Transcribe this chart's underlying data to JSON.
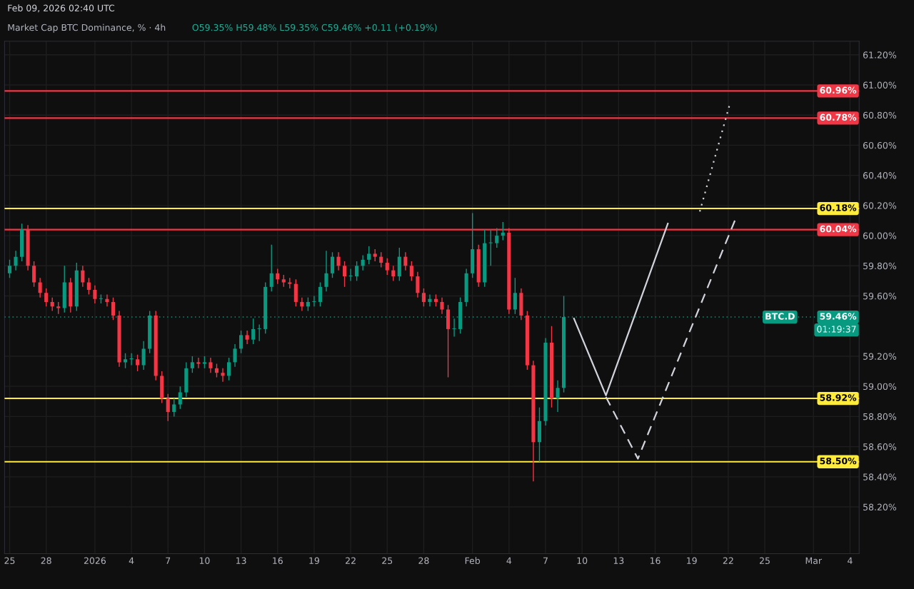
{
  "chart_data": {
    "type": "candlestick",
    "title": "Market Cap BTC Dominance, % · 4h",
    "subtitle": "O59.35% H59.48% L59.35% C59.46% +0.11 (+0.19%)",
    "annotations": [
      "Feb 09, 2026 02:40 UTC",
      "BTC.D",
      "01:19:37"
    ],
    "xlim": [
      "2025-12-24T14:00",
      "2026-03-04T18:00"
    ],
    "ylim": [
      57.89,
      61.29
    ],
    "xticks": [
      {
        "value": "2025-12-25",
        "label": "25"
      },
      {
        "value": "2025-12-28",
        "label": "28"
      },
      {
        "value": "2026-01-01",
        "label": "2026"
      },
      {
        "value": "2026-01-04",
        "label": "4"
      },
      {
        "value": "2026-01-07",
        "label": "7"
      },
      {
        "value": "2026-01-10",
        "label": "10"
      },
      {
        "value": "2026-01-13",
        "label": "13"
      },
      {
        "value": "2026-01-16",
        "label": "16"
      },
      {
        "value": "2026-01-19",
        "label": "19"
      },
      {
        "value": "2026-01-22",
        "label": "22"
      },
      {
        "value": "2026-01-25",
        "label": "25"
      },
      {
        "value": "2026-01-28",
        "label": "28"
      },
      {
        "value": "2026-02-01",
        "label": "Feb"
      },
      {
        "value": "2026-02-04",
        "label": "4"
      },
      {
        "value": "2026-02-07",
        "label": "7"
      },
      {
        "value": "2026-02-10",
        "label": "10"
      },
      {
        "value": "2026-02-13",
        "label": "13"
      },
      {
        "value": "2026-02-16",
        "label": "16"
      },
      {
        "value": "2026-02-19",
        "label": "19"
      },
      {
        "value": "2026-02-22",
        "label": "22"
      },
      {
        "value": "2026-02-25",
        "label": "25"
      },
      {
        "value": "2026-03-01",
        "label": "Mar"
      },
      {
        "value": "2026-03-04",
        "label": "4"
      }
    ],
    "yticks": [
      {
        "value": 58.2,
        "label": "58.20%"
      },
      {
        "value": 58.4,
        "label": "58.40%"
      },
      {
        "value": 58.6,
        "label": "58.60%"
      },
      {
        "value": 58.8,
        "label": "58.80%"
      },
      {
        "value": 59.0,
        "label": "59.00%"
      },
      {
        "value": 59.2,
        "label": "59.20%"
      },
      {
        "value": 59.6,
        "label": "59.60%"
      },
      {
        "value": 59.8,
        "label": "59.80%"
      },
      {
        "value": 60.0,
        "label": "60.00%"
      },
      {
        "value": 60.2,
        "label": "60.20%"
      },
      {
        "value": 60.4,
        "label": "60.40%"
      },
      {
        "value": 60.6,
        "label": "60.60%"
      },
      {
        "value": 60.8,
        "label": "60.80%"
      },
      {
        "value": 61.0,
        "label": "61.00%"
      },
      {
        "value": 61.2,
        "label": "61.20%"
      }
    ],
    "grid": true,
    "ref_lines": [
      {
        "axis": "y",
        "value": 60.96,
        "label": "60.96%",
        "color": "#f23645",
        "line_style": "solid"
      },
      {
        "axis": "y",
        "value": 60.78,
        "label": "60.78%",
        "color": "#f23645",
        "line_style": "solid"
      },
      {
        "axis": "y",
        "value": 60.18,
        "label": "60.18%",
        "color": "#ffeb3b",
        "line_style": "solid"
      },
      {
        "axis": "y",
        "value": 60.04,
        "label": "60.04%",
        "color": "#f23645",
        "line_style": "solid"
      },
      {
        "axis": "y",
        "value": 58.92,
        "label": "58.92%",
        "color": "#ffeb3b",
        "line_style": "solid"
      },
      {
        "axis": "y",
        "value": 58.5,
        "label": "58.50%",
        "color": "#ffeb3b",
        "line_style": "solid"
      },
      {
        "axis": "y",
        "value": 59.46,
        "label": "59.46%",
        "color": "#089981",
        "line_style": "dotted"
      }
    ],
    "series": [
      {
        "colors": [
          "#089981",
          "#089981",
          "#089981",
          "#f23645",
          "#f23645",
          "#f23645",
          "#f23645",
          "#f23645",
          "#f23645",
          "#089981",
          "#f23645",
          "#089981",
          "#f23645",
          "#f23645",
          "#f23645",
          "#089981",
          "#f23645",
          "#f23645",
          "#f23645",
          "#089981",
          "#089981",
          "#f23645",
          "#089981",
          "#089981",
          "#f23645",
          "#f23645",
          "#f23645",
          "#089981",
          "#089981",
          "#089981",
          "#089981",
          "#f23645",
          "#089981",
          "#f23645",
          "#f23645",
          "#f23645",
          "#089981",
          "#089981",
          "#089981",
          "#f23645",
          "#089981",
          "#089981",
          "#089981",
          "#089981",
          "#f23645",
          "#f23645",
          "#f23645",
          "#f23645",
          "#f23645",
          "#089981",
          "#089981",
          "#089981",
          "#089981",
          "#089981",
          "#f23645",
          "#f23645",
          "#089981",
          "#089981",
          "#089981",
          "#089981",
          "#f23645",
          "#f23645",
          "#f23645",
          "#f23645",
          "#089981",
          "#f23645",
          "#f23645",
          "#f23645",
          "#f23645",
          "#089981",
          "#f23645",
          "#f23645",
          "#f23645",
          "#089981",
          "#089981",
          "#089981",
          "#089981",
          "#f23645",
          "#089981",
          "#089981",
          "#089981",
          "#089981",
          "#f23645",
          "#089981",
          "#f23645",
          "#f23645",
          "#f23645",
          "#089981",
          "#089981",
          "#f23645",
          "#089981",
          "#089981"
        ],
        "x": [
          "2025-12-25T00:00",
          "2025-12-25T12:00",
          "2025-12-26T00:00",
          "2025-12-26T12:00",
          "2025-12-27T00:00",
          "2025-12-27T12:00",
          "2025-12-28T00:00",
          "2025-12-28T12:00",
          "2025-12-29T00:00",
          "2025-12-29T12:00",
          "2025-12-30T00:00",
          "2025-12-30T12:00",
          "2025-12-31T00:00",
          "2025-12-31T12:00",
          "2026-01-01T00:00",
          "2026-01-01T12:00",
          "2026-01-02T00:00",
          "2026-01-02T12:00",
          "2026-01-03T00:00",
          "2026-01-03T12:00",
          "2026-01-04T00:00",
          "2026-01-04T12:00",
          "2026-01-05T00:00",
          "2026-01-05T12:00",
          "2026-01-06T00:00",
          "2026-01-06T12:00",
          "2026-01-07T00:00",
          "2026-01-07T12:00",
          "2026-01-08T00:00",
          "2026-01-08T12:00",
          "2026-01-09T00:00",
          "2026-01-09T12:00",
          "2026-01-10T00:00",
          "2026-01-10T12:00",
          "2026-01-11T00:00",
          "2026-01-11T12:00",
          "2026-01-12T00:00",
          "2026-01-12T12:00",
          "2026-01-13T00:00",
          "2026-01-13T12:00",
          "2026-01-14T00:00",
          "2026-01-14T12:00",
          "2026-01-15T00:00",
          "2026-01-15T12:00",
          "2026-01-16T00:00",
          "2026-01-16T12:00",
          "2026-01-17T00:00",
          "2026-01-17T12:00",
          "2026-01-18T00:00",
          "2026-01-18T12:00",
          "2026-01-19T00:00",
          "2026-01-19T12:00",
          "2026-01-20T00:00",
          "2026-01-20T12:00",
          "2026-01-21T00:00",
          "2026-01-21T12:00",
          "2026-01-22T00:00",
          "2026-01-22T12:00",
          "2026-01-23T00:00",
          "2026-01-23T12:00",
          "2026-01-24T00:00",
          "2026-01-24T12:00",
          "2026-01-25T00:00",
          "2026-01-25T12:00",
          "2026-01-26T00:00",
          "2026-01-26T12:00",
          "2026-01-27T00:00",
          "2026-01-27T12:00",
          "2026-01-28T00:00",
          "2026-01-28T12:00",
          "2026-01-29T00:00",
          "2026-01-29T12:00",
          "2026-01-30T00:00",
          "2026-01-30T12:00",
          "2026-01-31T00:00",
          "2026-01-31T12:00",
          "2026-02-01T00:00",
          "2026-02-01T12:00",
          "2026-02-02T00:00",
          "2026-02-02T12:00",
          "2026-02-03T00:00",
          "2026-02-03T12:00",
          "2026-02-04T00:00",
          "2026-02-04T12:00",
          "2026-02-05T00:00",
          "2026-02-05T12:00",
          "2026-02-06T00:00",
          "2026-02-06T12:00",
          "2026-02-07T00:00",
          "2026-02-07T12:00",
          "2026-02-08T00:00",
          "2026-02-08T12:00"
        ],
        "ohlc": [
          [
            59.75,
            59.84,
            59.72,
            59.8
          ],
          [
            59.8,
            59.9,
            59.77,
            59.86
          ],
          [
            59.86,
            60.08,
            59.83,
            60.04
          ],
          [
            60.04,
            60.07,
            59.77,
            59.8
          ],
          [
            59.8,
            59.83,
            59.66,
            59.69
          ],
          [
            59.69,
            59.72,
            59.59,
            59.62
          ],
          [
            59.62,
            59.65,
            59.53,
            59.56
          ],
          [
            59.56,
            59.59,
            59.5,
            59.53
          ],
          [
            59.53,
            59.56,
            59.48,
            59.52
          ],
          [
            59.52,
            59.8,
            59.49,
            59.69
          ],
          [
            59.69,
            59.72,
            59.49,
            59.53
          ],
          [
            59.53,
            59.82,
            59.5,
            59.77
          ],
          [
            59.77,
            59.8,
            59.66,
            59.69
          ],
          [
            59.69,
            59.72,
            59.61,
            59.64
          ],
          [
            59.64,
            59.67,
            59.55,
            59.58
          ],
          [
            59.58,
            59.61,
            59.55,
            59.58
          ],
          [
            59.58,
            59.61,
            59.53,
            59.56
          ],
          [
            59.56,
            59.59,
            59.44,
            59.47
          ],
          [
            59.47,
            59.5,
            59.13,
            59.16
          ],
          [
            59.16,
            59.22,
            59.12,
            59.18
          ],
          [
            59.18,
            59.22,
            59.14,
            59.18
          ],
          [
            59.18,
            59.21,
            59.1,
            59.14
          ],
          [
            59.14,
            59.3,
            59.11,
            59.25
          ],
          [
            59.25,
            59.5,
            59.22,
            59.47
          ],
          [
            59.47,
            59.5,
            59.04,
            59.07
          ],
          [
            59.07,
            59.1,
            58.89,
            58.92
          ],
          [
            58.92,
            58.95,
            58.77,
            58.83
          ],
          [
            58.83,
            58.92,
            58.8,
            58.88
          ],
          [
            58.88,
            59.0,
            58.85,
            58.96
          ],
          [
            58.96,
            59.16,
            58.93,
            59.12
          ],
          [
            59.12,
            59.2,
            59.09,
            59.16
          ],
          [
            59.16,
            59.19,
            59.12,
            59.15
          ],
          [
            59.15,
            59.2,
            59.12,
            59.16
          ],
          [
            59.16,
            59.19,
            59.09,
            59.12
          ],
          [
            59.12,
            59.15,
            59.06,
            59.09
          ],
          [
            59.09,
            59.12,
            59.03,
            59.07
          ],
          [
            59.07,
            59.19,
            59.04,
            59.16
          ],
          [
            59.16,
            59.28,
            59.13,
            59.25
          ],
          [
            59.25,
            59.37,
            59.22,
            59.34
          ],
          [
            59.34,
            59.37,
            59.28,
            59.31
          ],
          [
            59.31,
            59.45,
            59.28,
            59.38
          ],
          [
            59.38,
            59.41,
            59.3,
            59.38
          ],
          [
            59.38,
            59.69,
            59.35,
            59.66
          ],
          [
            59.66,
            59.94,
            59.63,
            59.75
          ],
          [
            59.75,
            59.78,
            59.68,
            59.71
          ],
          [
            59.71,
            59.74,
            59.66,
            59.69
          ],
          [
            59.69,
            59.72,
            59.65,
            59.68
          ],
          [
            59.68,
            59.71,
            59.53,
            59.56
          ],
          [
            59.56,
            59.59,
            59.5,
            59.53
          ],
          [
            59.53,
            59.59,
            59.5,
            59.56
          ],
          [
            59.56,
            59.6,
            59.53,
            59.56
          ],
          [
            59.56,
            59.69,
            59.53,
            59.66
          ],
          [
            59.66,
            59.9,
            59.63,
            59.75
          ],
          [
            59.75,
            59.89,
            59.72,
            59.86
          ],
          [
            59.86,
            59.89,
            59.77,
            59.8
          ],
          [
            59.8,
            59.83,
            59.66,
            59.73
          ],
          [
            59.73,
            59.78,
            59.7,
            59.73
          ],
          [
            59.73,
            59.83,
            59.7,
            59.8
          ],
          [
            59.8,
            59.87,
            59.77,
            59.84
          ],
          [
            59.84,
            59.93,
            59.81,
            59.88
          ],
          [
            59.88,
            59.91,
            59.83,
            59.86
          ],
          [
            59.86,
            59.89,
            59.79,
            59.82
          ],
          [
            59.82,
            59.85,
            59.74,
            59.77
          ],
          [
            59.77,
            59.8,
            59.7,
            59.73
          ],
          [
            59.73,
            59.92,
            59.7,
            59.86
          ],
          [
            59.86,
            59.89,
            59.77,
            59.8
          ],
          [
            59.8,
            59.83,
            59.7,
            59.73
          ],
          [
            59.73,
            59.76,
            59.59,
            59.62
          ],
          [
            59.62,
            59.65,
            59.53,
            59.56
          ],
          [
            59.56,
            59.61,
            59.53,
            59.58
          ],
          [
            59.58,
            59.61,
            59.53,
            59.56
          ],
          [
            59.56,
            59.59,
            59.48,
            59.51
          ],
          [
            59.51,
            59.54,
            59.06,
            59.38
          ],
          [
            59.38,
            59.45,
            59.33,
            59.38
          ],
          [
            59.38,
            59.59,
            59.35,
            59.56
          ],
          [
            59.56,
            59.78,
            59.53,
            59.75
          ],
          [
            59.75,
            60.15,
            59.72,
            59.91
          ],
          [
            59.91,
            59.94,
            59.66,
            59.69
          ],
          [
            59.69,
            60.04,
            59.66,
            59.95
          ],
          [
            59.95,
            60.04,
            59.8,
            59.95
          ],
          [
            59.95,
            60.05,
            59.92,
            60.0
          ],
          [
            60.0,
            60.09,
            59.97,
            60.02
          ],
          [
            60.02,
            60.05,
            59.48,
            59.51
          ],
          [
            59.51,
            59.72,
            59.48,
            59.62
          ],
          [
            59.62,
            59.65,
            59.44,
            59.47
          ],
          [
            59.47,
            59.5,
            59.11,
            59.14
          ],
          [
            59.14,
            59.17,
            58.37,
            58.63
          ],
          [
            58.63,
            58.86,
            58.5,
            58.77
          ],
          [
            58.77,
            59.32,
            58.74,
            59.29
          ],
          [
            59.29,
            59.4,
            58.86,
            58.92
          ],
          [
            58.92,
            59.04,
            58.83,
            58.99
          ],
          [
            58.99,
            59.6,
            58.96,
            59.46
          ]
        ]
      },
      {
        "type": "line",
        "color": "#d1d4dc",
        "line_style": "solid",
        "x": [
          "2026-02-09T08:00",
          "2026-02-11T23:00",
          "2026-02-17T01:00"
        ],
        "values": [
          59.45,
          58.94,
          60.08
        ]
      },
      {
        "type": "line",
        "color": "#d1d4dc",
        "line_style": "dashed",
        "x": [
          "2026-02-11T23:00",
          "2026-02-14T14:00",
          "2026-02-22T13:00"
        ],
        "values": [
          58.93,
          58.52,
          60.1
        ]
      },
      {
        "type": "line",
        "color": "#d1d4dc",
        "line_style": "dotted",
        "x": [
          "2026-02-19T16:00",
          "2026-02-22T02:00"
        ],
        "values": [
          60.16,
          60.86
        ]
      }
    ]
  }
}
